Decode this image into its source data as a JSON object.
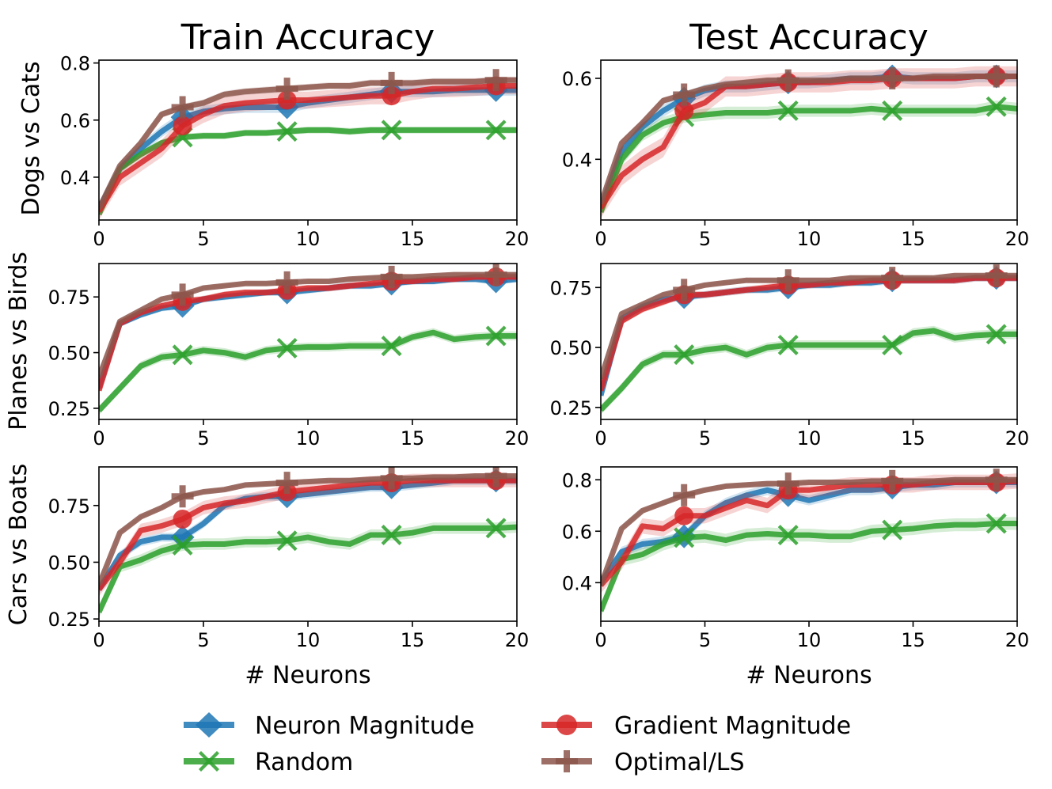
{
  "chart_data": {
    "type": "line",
    "columns": [
      "Train Accuracy",
      "Test Accuracy"
    ],
    "rows": [
      "Dogs vs Cats",
      "Planes vs Birds",
      "Cars vs Boats"
    ],
    "xlabel": "# Neurons",
    "xlim": [
      0,
      20
    ],
    "xticks": [
      0,
      5,
      10,
      15,
      20
    ],
    "marker_x": [
      4,
      9,
      14,
      19
    ],
    "x": [
      0,
      1,
      2,
      3,
      4,
      5,
      6,
      7,
      8,
      9,
      10,
      11,
      12,
      13,
      14,
      15,
      16,
      17,
      18,
      19,
      20
    ],
    "legend": [
      {
        "name": "Neuron Magnitude",
        "color": "#1f77b4",
        "marker": "diamond"
      },
      {
        "name": "Gradient Magnitude",
        "color": "#d62728",
        "marker": "circle"
      },
      {
        "name": "Random",
        "color": "#2ca02c",
        "marker": "x"
      },
      {
        "name": "Optimal/LS",
        "color": "#8c564b",
        "marker": "plus"
      }
    ],
    "panels": [
      {
        "id": "dogs-train",
        "row": 0,
        "col": 0,
        "ylim": [
          0.25,
          0.81
        ],
        "yticks": [
          "0.4",
          "0.6",
          "0.8"
        ],
        "ytick_values": [
          0.4,
          0.6,
          0.8
        ],
        "series": [
          {
            "name": "Neuron Magnitude",
            "band": 0.02,
            "values": [
              0.29,
              0.43,
              0.5,
              0.56,
              0.61,
              0.63,
              0.64,
              0.645,
              0.645,
              0.645,
              0.66,
              0.67,
              0.68,
              0.69,
              0.7,
              0.7,
              0.7,
              0.705,
              0.705,
              0.705,
              0.705
            ]
          },
          {
            "name": "Gradient Magnitude",
            "band": 0.03,
            "values": [
              0.28,
              0.4,
              0.45,
              0.5,
              0.58,
              0.62,
              0.65,
              0.66,
              0.665,
              0.67,
              0.67,
              0.675,
              0.68,
              0.685,
              0.685,
              0.7,
              0.71,
              0.71,
              0.715,
              0.72,
              0.72
            ]
          },
          {
            "name": "Random",
            "band": 0.012,
            "values": [
              0.27,
              0.43,
              0.48,
              0.52,
              0.54,
              0.545,
              0.545,
              0.555,
              0.555,
              0.56,
              0.565,
              0.565,
              0.56,
              0.565,
              0.565,
              0.565,
              0.565,
              0.565,
              0.565,
              0.565,
              0.565
            ]
          },
          {
            "name": "Optimal/LS",
            "band": 0.012,
            "values": [
              0.29,
              0.44,
              0.52,
              0.62,
              0.645,
              0.66,
              0.69,
              0.7,
              0.705,
              0.71,
              0.715,
              0.72,
              0.72,
              0.73,
              0.73,
              0.73,
              0.735,
              0.735,
              0.735,
              0.74,
              0.74
            ]
          }
        ]
      },
      {
        "id": "dogs-test",
        "row": 0,
        "col": 1,
        "ylim": [
          0.25,
          0.645
        ],
        "yticks": [
          "0.4",
          "0.6"
        ],
        "ytick_values": [
          0.4,
          0.6
        ],
        "series": [
          {
            "name": "Neuron Magnitude",
            "band": 0.015,
            "values": [
              0.28,
              0.42,
              0.48,
              0.52,
              0.55,
              0.57,
              0.58,
              0.58,
              0.585,
              0.59,
              0.59,
              0.595,
              0.6,
              0.6,
              0.605,
              0.6,
              0.6,
              0.6,
              0.605,
              0.605,
              0.605
            ]
          },
          {
            "name": "Gradient Magnitude",
            "band": 0.025,
            "values": [
              0.28,
              0.36,
              0.4,
              0.43,
              0.52,
              0.54,
              0.58,
              0.58,
              0.585,
              0.59,
              0.59,
              0.59,
              0.595,
              0.595,
              0.6,
              0.6,
              0.6,
              0.6,
              0.605,
              0.605,
              0.605
            ]
          },
          {
            "name": "Random",
            "band": 0.015,
            "values": [
              0.27,
              0.4,
              0.46,
              0.49,
              0.505,
              0.51,
              0.515,
              0.515,
              0.515,
              0.52,
              0.52,
              0.52,
              0.52,
              0.525,
              0.52,
              0.52,
              0.52,
              0.52,
              0.52,
              0.53,
              0.525
            ]
          },
          {
            "name": "Optimal/LS",
            "band": 0.008,
            "values": [
              0.29,
              0.44,
              0.49,
              0.545,
              0.56,
              0.575,
              0.585,
              0.59,
              0.595,
              0.595,
              0.595,
              0.595,
              0.6,
              0.6,
              0.6,
              0.6,
              0.605,
              0.605,
              0.605,
              0.605,
              0.605
            ]
          }
        ]
      },
      {
        "id": "planes-train",
        "row": 1,
        "col": 0,
        "ylim": [
          0.2,
          0.9
        ],
        "yticks": [
          "0.25",
          "0.50",
          "0.75"
        ],
        "ytick_values": [
          0.25,
          0.5,
          0.75
        ],
        "series": [
          {
            "name": "Neuron Magnitude",
            "band": 0.015,
            "values": [
              0.34,
              0.63,
              0.67,
              0.7,
              0.71,
              0.74,
              0.75,
              0.76,
              0.77,
              0.77,
              0.78,
              0.79,
              0.8,
              0.8,
              0.81,
              0.82,
              0.82,
              0.83,
              0.83,
              0.82,
              0.83
            ]
          },
          {
            "name": "Gradient Magnitude",
            "band": 0.015,
            "values": [
              0.33,
              0.63,
              0.68,
              0.71,
              0.73,
              0.74,
              0.76,
              0.77,
              0.77,
              0.78,
              0.79,
              0.79,
              0.8,
              0.81,
              0.82,
              0.82,
              0.83,
              0.83,
              0.84,
              0.84,
              0.84
            ]
          },
          {
            "name": "Random",
            "band": 0.02,
            "values": [
              0.24,
              0.34,
              0.44,
              0.48,
              0.49,
              0.51,
              0.5,
              0.48,
              0.51,
              0.52,
              0.525,
              0.525,
              0.53,
              0.53,
              0.53,
              0.57,
              0.59,
              0.56,
              0.57,
              0.575,
              0.575
            ]
          },
          {
            "name": "Optimal/LS",
            "band": 0.008,
            "values": [
              0.39,
              0.64,
              0.69,
              0.74,
              0.76,
              0.79,
              0.8,
              0.81,
              0.81,
              0.815,
              0.82,
              0.82,
              0.83,
              0.835,
              0.84,
              0.84,
              0.845,
              0.85,
              0.85,
              0.85,
              0.85
            ]
          }
        ]
      },
      {
        "id": "planes-test",
        "row": 1,
        "col": 1,
        "ylim": [
          0.2,
          0.85
        ],
        "yticks": [
          "0.25",
          "0.50",
          "0.75"
        ],
        "ytick_values": [
          0.25,
          0.5,
          0.75
        ],
        "series": [
          {
            "name": "Neuron Magnitude",
            "band": 0.015,
            "values": [
              0.3,
              0.62,
              0.67,
              0.7,
              0.71,
              0.72,
              0.73,
              0.74,
              0.74,
              0.75,
              0.76,
              0.76,
              0.77,
              0.77,
              0.78,
              0.78,
              0.78,
              0.78,
              0.79,
              0.79,
              0.79
            ]
          },
          {
            "name": "Gradient Magnitude",
            "band": 0.015,
            "values": [
              0.32,
              0.61,
              0.66,
              0.69,
              0.72,
              0.72,
              0.73,
              0.74,
              0.75,
              0.76,
              0.76,
              0.77,
              0.77,
              0.78,
              0.78,
              0.78,
              0.78,
              0.78,
              0.79,
              0.79,
              0.79
            ]
          },
          {
            "name": "Random",
            "band": 0.02,
            "values": [
              0.24,
              0.33,
              0.43,
              0.47,
              0.47,
              0.49,
              0.5,
              0.47,
              0.5,
              0.51,
              0.51,
              0.51,
              0.51,
              0.51,
              0.51,
              0.56,
              0.57,
              0.54,
              0.55,
              0.555,
              0.555
            ]
          },
          {
            "name": "Optimal/LS",
            "band": 0.008,
            "values": [
              0.37,
              0.64,
              0.68,
              0.72,
              0.74,
              0.76,
              0.77,
              0.78,
              0.78,
              0.78,
              0.78,
              0.78,
              0.79,
              0.79,
              0.79,
              0.79,
              0.79,
              0.8,
              0.8,
              0.8,
              0.8
            ]
          }
        ]
      },
      {
        "id": "cars-train",
        "row": 2,
        "col": 0,
        "ylim": [
          0.24,
          0.92
        ],
        "yticks": [
          "0.25",
          "0.50",
          "0.75"
        ],
        "ytick_values": [
          0.25,
          0.5,
          0.75
        ],
        "series": [
          {
            "name": "Neuron Magnitude",
            "band": 0.02,
            "values": [
              0.38,
              0.53,
              0.59,
              0.61,
              0.61,
              0.67,
              0.75,
              0.78,
              0.79,
              0.79,
              0.8,
              0.81,
              0.82,
              0.83,
              0.83,
              0.84,
              0.85,
              0.86,
              0.86,
              0.86,
              0.86
            ]
          },
          {
            "name": "Gradient Magnitude",
            "band": 0.03,
            "values": [
              0.38,
              0.5,
              0.64,
              0.66,
              0.69,
              0.74,
              0.76,
              0.77,
              0.79,
              0.81,
              0.82,
              0.83,
              0.84,
              0.85,
              0.85,
              0.86,
              0.86,
              0.86,
              0.86,
              0.86,
              0.86
            ]
          },
          {
            "name": "Random",
            "band": 0.025,
            "values": [
              0.28,
              0.48,
              0.51,
              0.55,
              0.575,
              0.58,
              0.58,
              0.59,
              0.59,
              0.595,
              0.61,
              0.59,
              0.58,
              0.62,
              0.62,
              0.63,
              0.65,
              0.65,
              0.65,
              0.65,
              0.655
            ]
          },
          {
            "name": "Optimal/LS",
            "band": 0.008,
            "values": [
              0.4,
              0.63,
              0.7,
              0.74,
              0.79,
              0.81,
              0.82,
              0.84,
              0.845,
              0.85,
              0.855,
              0.86,
              0.86,
              0.865,
              0.87,
              0.87,
              0.875,
              0.875,
              0.88,
              0.88,
              0.88
            ]
          }
        ]
      },
      {
        "id": "cars-test",
        "row": 2,
        "col": 1,
        "ylim": [
          0.25,
          0.85
        ],
        "yticks": [
          "0.4",
          "0.6",
          "0.8"
        ],
        "ytick_values": [
          0.4,
          0.6,
          0.8
        ],
        "series": [
          {
            "name": "Neuron Magnitude",
            "band": 0.02,
            "values": [
              0.4,
              0.52,
              0.55,
              0.56,
              0.58,
              0.66,
              0.71,
              0.74,
              0.76,
              0.74,
              0.72,
              0.74,
              0.76,
              0.76,
              0.77,
              0.78,
              0.78,
              0.79,
              0.79,
              0.79,
              0.79
            ]
          },
          {
            "name": "Gradient Magnitude",
            "band": 0.03,
            "values": [
              0.39,
              0.48,
              0.62,
              0.61,
              0.66,
              0.66,
              0.69,
              0.72,
              0.7,
              0.76,
              0.76,
              0.77,
              0.78,
              0.78,
              0.78,
              0.78,
              0.79,
              0.79,
              0.79,
              0.79,
              0.795
            ]
          },
          {
            "name": "Random",
            "band": 0.025,
            "values": [
              0.29,
              0.49,
              0.51,
              0.55,
              0.575,
              0.58,
              0.565,
              0.585,
              0.59,
              0.585,
              0.585,
              0.58,
              0.58,
              0.6,
              0.605,
              0.61,
              0.62,
              0.625,
              0.625,
              0.63,
              0.63
            ]
          },
          {
            "name": "Optimal/LS",
            "band": 0.008,
            "values": [
              0.39,
              0.61,
              0.68,
              0.71,
              0.74,
              0.76,
              0.775,
              0.78,
              0.785,
              0.785,
              0.79,
              0.79,
              0.79,
              0.795,
              0.795,
              0.795,
              0.795,
              0.8,
              0.8,
              0.8,
              0.8
            ]
          }
        ]
      }
    ]
  }
}
